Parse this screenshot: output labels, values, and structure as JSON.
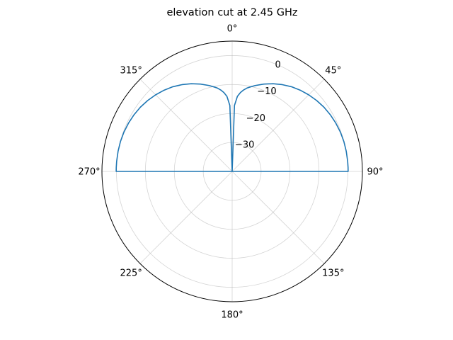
{
  "chart_data": {
    "type": "polar-line",
    "title": "elevation cut at 2.45 GHz",
    "theta_zero_location": "N",
    "theta_direction": "clockwise",
    "theta_ticks": [
      "0°",
      "45°",
      "90°",
      "135°",
      "180°",
      "225°",
      "270°",
      "315°"
    ],
    "theta_tick_values": [
      0,
      45,
      90,
      135,
      180,
      225,
      270,
      315
    ],
    "r_ticks": [
      "0",
      "−10",
      "−20",
      "−30"
    ],
    "r_tick_values": [
      0,
      -10,
      -20,
      -30
    ],
    "rlim": [
      -40,
      5
    ],
    "grid": true,
    "series": [
      {
        "color": "#1f77b4",
        "theta": [
          0,
          2,
          4,
          6,
          8,
          10,
          12,
          15,
          20,
          25,
          30,
          35,
          40,
          45,
          50,
          55,
          60,
          65,
          70,
          75,
          80,
          85,
          88,
          90,
          90,
          270,
          270,
          272,
          275,
          280,
          285,
          290,
          295,
          300,
          305,
          310,
          315,
          320,
          325,
          330,
          335,
          340,
          345,
          348,
          350,
          352,
          354,
          356,
          358,
          360
        ],
        "r": [
          -40,
          -17.2,
          -14.0,
          -12.6,
          -11.6,
          -10.8,
          -10.2,
          -9.3,
          -7.9,
          -6.6,
          -5.4,
          -4.3,
          -3.4,
          -2.6,
          -1.9,
          -1.3,
          -0.85,
          -0.5,
          -0.22,
          -0.05,
          0.03,
          0.06,
          0.07,
          0.07,
          -40,
          -40,
          0.07,
          0.07,
          0.06,
          0.03,
          -0.05,
          -0.22,
          -0.5,
          -0.85,
          -1.3,
          -1.9,
          -2.6,
          -3.4,
          -4.3,
          -5.4,
          -6.6,
          -7.9,
          -9.3,
          -10.2,
          -10.8,
          -11.6,
          -12.6,
          -14.0,
          -17.2,
          -40
        ]
      }
    ]
  }
}
